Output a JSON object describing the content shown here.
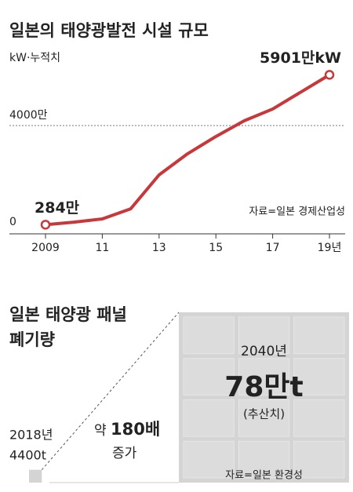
{
  "chart_data": [
    {
      "type": "line",
      "title": "일본의 태양광발전 시설 규모",
      "unit_label": "kW·누적치",
      "source": "자료=일본 경제산업성",
      "x": [
        2009,
        2010,
        2011,
        2012,
        2013,
        2014,
        2015,
        2016,
        2017,
        2018,
        2019
      ],
      "series": [
        {
          "name": "태양광발전 시설 규모",
          "color": "#c8373a",
          "values": [
            284,
            380,
            500,
            880,
            2150,
            2940,
            3590,
            4180,
            4620,
            5260,
            5901
          ],
          "value_labels": [
            "284만",
            null,
            null,
            null,
            null,
            null,
            null,
            null,
            null,
            null,
            "5901만kW"
          ]
        }
      ],
      "xlim": [
        2009,
        2019
      ],
      "xticks": [
        2009,
        {
          "value": 2011,
          "label": "11"
        },
        {
          "value": 2013,
          "label": "13"
        },
        {
          "value": 2015,
          "label": "15"
        },
        {
          "value": 2017,
          "label": "17"
        },
        {
          "value": 2019,
          "label": "19년"
        }
      ],
      "ylim": [
        0,
        6000
      ],
      "yticks": [
        0,
        {
          "value": 4000,
          "label": "4000만"
        }
      ],
      "grid": true
    },
    {
      "type": "area",
      "title": [
        "일본 태양광 패널",
        "폐기량"
      ],
      "categories": [
        "2018년",
        "2040년"
      ],
      "values": [
        4400,
        780000
      ],
      "value_labels": [
        "4400t",
        "78만t"
      ],
      "note": "(추산치)",
      "ratio": {
        "prefix": "약",
        "value": 180,
        "label": "180배",
        "suffix": "증가"
      },
      "source": "자료=일본 환경성",
      "colors": [
        "#d4d4d4",
        "#d4d4d4"
      ]
    }
  ]
}
